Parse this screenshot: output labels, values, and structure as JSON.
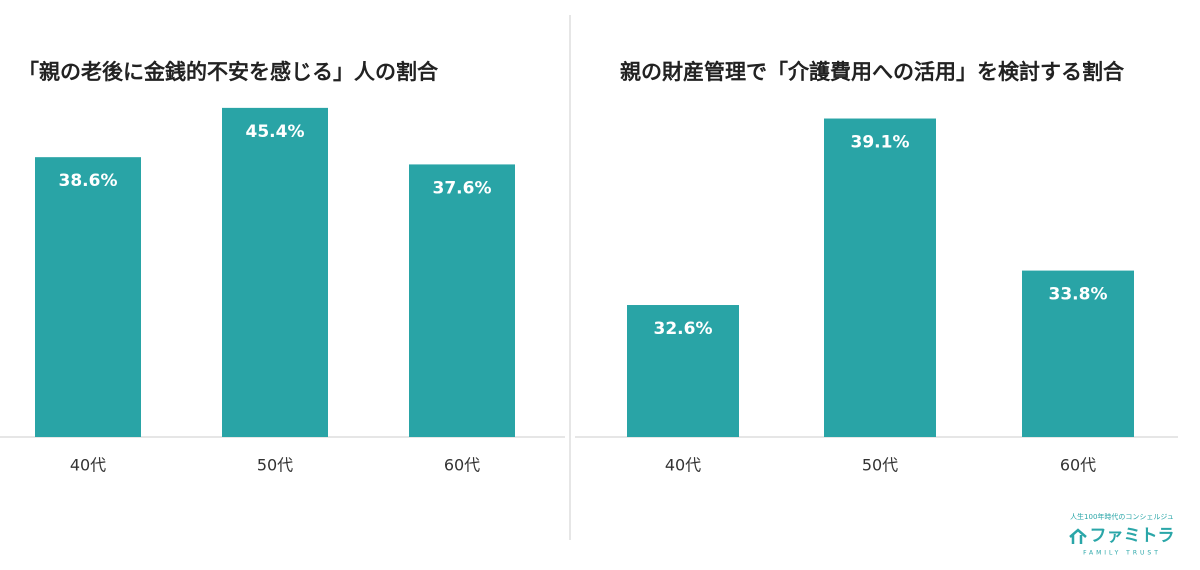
{
  "chart_data": [
    {
      "type": "bar",
      "title": "「親の老後に金銭的不安を感じる」人の割合",
      "categories": [
        "40代",
        "50代",
        "60代"
      ],
      "values": [
        38.6,
        45.4,
        37.6
      ],
      "value_labels": [
        "38.6%",
        "45.4%",
        "37.6%"
      ],
      "color": "#29a4a6",
      "ylim": [
        0,
        46.9
      ]
    },
    {
      "type": "bar",
      "title": "親の財産管理で「介護費用への活用」を検討する割合",
      "categories": [
        "40代",
        "50代",
        "60代"
      ],
      "values": [
        32.6,
        39.1,
        33.8
      ],
      "value_labels": [
        "32.6%",
        "39.1%",
        "33.8%"
      ],
      "color": "#29a4a6",
      "ylim": [
        28,
        39.85
      ]
    }
  ],
  "logo": {
    "tagline": "人生100年時代のコンシェルジュ",
    "name": "ファミトラ",
    "sub": "FAMILY TRUST"
  }
}
